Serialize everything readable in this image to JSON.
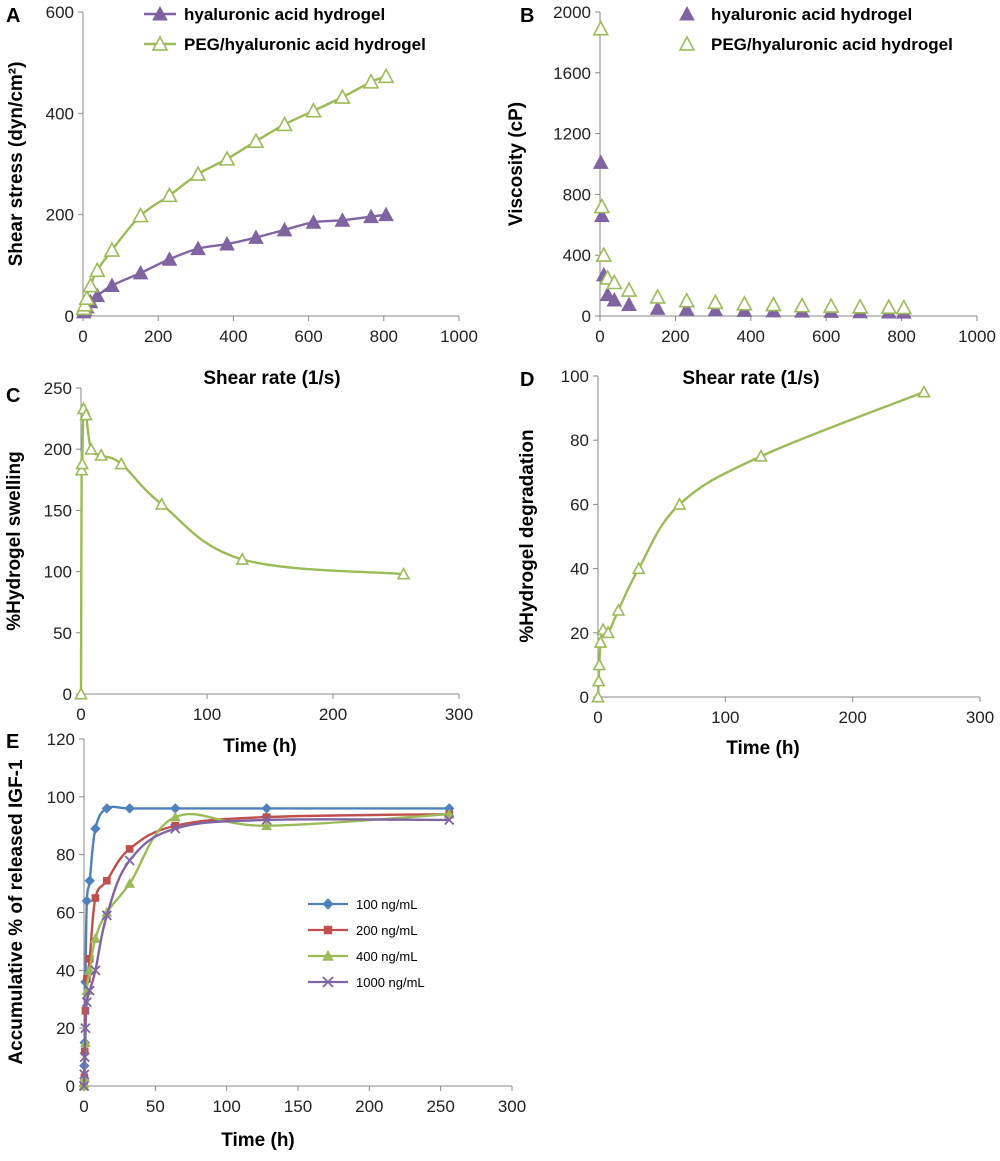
{
  "chart_data": [
    {
      "panel": "A",
      "type": "line",
      "xlabel": "Shear rate (1/s)",
      "ylabel": "Shear stress (dyn/cm²)",
      "xlim": [
        0,
        1000
      ],
      "ylim": [
        0,
        600
      ],
      "xticks": [
        0,
        200,
        400,
        600,
        800,
        1000
      ],
      "yticks": [
        0,
        200,
        400,
        600
      ],
      "grid": false,
      "legend": "top",
      "series": [
        {
          "name": "hyaluronic acid hydrogel",
          "color": "#8064A2",
          "marker": "triangle-filled",
          "x": [
            2,
            5,
            10,
            20,
            38,
            77,
            153,
            230,
            306,
            383,
            460,
            536,
            613,
            690,
            766,
            806
          ],
          "y": [
            8,
            12,
            18,
            28,
            40,
            60,
            85,
            112,
            133,
            142,
            155,
            170,
            185,
            189,
            196,
            200
          ]
        },
        {
          "name": "PEG/hyaluronic acid hydrogel",
          "color": "#9BBB59",
          "marker": "triangle-open",
          "x": [
            2,
            5,
            10,
            20,
            38,
            77,
            153,
            230,
            306,
            383,
            460,
            536,
            613,
            690,
            766,
            806
          ],
          "y": [
            15,
            22,
            35,
            60,
            90,
            130,
            198,
            238,
            280,
            310,
            345,
            378,
            405,
            432,
            462,
            473
          ]
        }
      ]
    },
    {
      "panel": "B",
      "type": "scatter",
      "xlabel": "Shear rate (1/s)",
      "ylabel": "Viscosity (cP)",
      "xlim": [
        0,
        1000
      ],
      "ylim": [
        0,
        2000
      ],
      "xticks": [
        0,
        200,
        400,
        600,
        800,
        1000
      ],
      "yticks": [
        0,
        400,
        800,
        1200,
        1600,
        2000
      ],
      "grid": false,
      "legend": "top",
      "series": [
        {
          "name": "hyaluronic acid hydrogel",
          "color": "#8064A2",
          "marker": "triangle-filled",
          "x": [
            2,
            5,
            10,
            20,
            38,
            77,
            153,
            230,
            306,
            383,
            460,
            536,
            613,
            690,
            766,
            806
          ],
          "y": [
            1010,
            660,
            270,
            140,
            105,
            75,
            50,
            45,
            40,
            37,
            33,
            32,
            30,
            28,
            26,
            25
          ]
        },
        {
          "name": "PEG/hyaluronic acid hydrogel",
          "color": "#9BBB59",
          "marker": "triangle-open",
          "x": [
            2,
            5,
            10,
            20,
            38,
            77,
            153,
            230,
            306,
            383,
            460,
            536,
            613,
            690,
            766,
            806
          ],
          "y": [
            1890,
            720,
            400,
            250,
            220,
            170,
            125,
            100,
            90,
            80,
            75,
            68,
            65,
            60,
            58,
            55
          ]
        }
      ]
    },
    {
      "panel": "C",
      "type": "line",
      "xlabel": "Time (h)",
      "ylabel": "%Hydrogel swelling",
      "xlim": [
        0,
        300
      ],
      "ylim": [
        0,
        250
      ],
      "xticks": [
        0,
        100,
        200,
        300
      ],
      "yticks": [
        0,
        50,
        100,
        150,
        200,
        250
      ],
      "grid": false,
      "series": [
        {
          "name": "",
          "color": "#9BBB59",
          "marker": "triangle-open",
          "x": [
            0,
            0.5,
            1,
            2,
            4,
            8,
            16,
            32,
            64,
            128,
            256
          ],
          "y": [
            0,
            183,
            188,
            233,
            228,
            200,
            195,
            188,
            155,
            110,
            98
          ]
        }
      ]
    },
    {
      "panel": "D",
      "type": "line",
      "xlabel": "Time (h)",
      "ylabel": "%Hydrogel degradation",
      "xlim": [
        0,
        300
      ],
      "ylim": [
        0,
        100
      ],
      "xticks": [
        0,
        100,
        200,
        300
      ],
      "yticks": [
        0,
        20,
        40,
        60,
        80,
        100
      ],
      "grid": false,
      "series": [
        {
          "name": "",
          "color": "#9BBB59",
          "marker": "triangle-open",
          "x": [
            0,
            0.5,
            1,
            2,
            4,
            8,
            16,
            32,
            64,
            128,
            256
          ],
          "y": [
            0,
            5,
            10,
            17,
            21,
            20,
            27,
            40,
            60,
            75,
            95
          ]
        }
      ]
    },
    {
      "panel": "E",
      "type": "line",
      "xlabel": "Time (h)",
      "ylabel": "Accumulative % of released IGF-1",
      "xlim": [
        0,
        300
      ],
      "ylim": [
        0,
        120
      ],
      "xticks": [
        0,
        50,
        100,
        150,
        200,
        250,
        300
      ],
      "yticks": [
        0,
        20,
        40,
        60,
        80,
        100,
        120
      ],
      "grid": false,
      "legend": "center-right",
      "series": [
        {
          "name": "100 ng/mL",
          "color": "#4F81BD",
          "marker": "diamond",
          "x": [
            0,
            0.25,
            0.5,
            1,
            2,
            4,
            8,
            16,
            32,
            64,
            128,
            256
          ],
          "y": [
            0,
            7,
            15,
            36,
            64,
            71,
            89,
            96,
            96,
            96,
            96,
            96
          ]
        },
        {
          "name": "200 ng/mL",
          "color": "#C0504D",
          "marker": "square",
          "x": [
            0,
            0.25,
            0.5,
            1,
            2,
            4,
            8,
            16,
            32,
            64,
            128,
            256
          ],
          "y": [
            0,
            3,
            12,
            26,
            37,
            44,
            65,
            71,
            82,
            90,
            93,
            94
          ]
        },
        {
          "name": "400 ng/mL",
          "color": "#9BBB59",
          "marker": "triangle",
          "x": [
            0,
            0.25,
            0.5,
            1,
            2,
            4,
            8,
            16,
            32,
            64,
            128,
            256
          ],
          "y": [
            0,
            1,
            3,
            15,
            33,
            40,
            51,
            60,
            70,
            93,
            90,
            94
          ]
        },
        {
          "name": "1000 ng/mL",
          "color": "#8064A2",
          "marker": "x",
          "x": [
            0,
            0.25,
            0.5,
            1,
            2,
            4,
            8,
            16,
            32,
            64,
            128,
            256
          ],
          "y": [
            0,
            4,
            10,
            20,
            29,
            33,
            40,
            59,
            78,
            89,
            92,
            92
          ]
        }
      ]
    }
  ]
}
